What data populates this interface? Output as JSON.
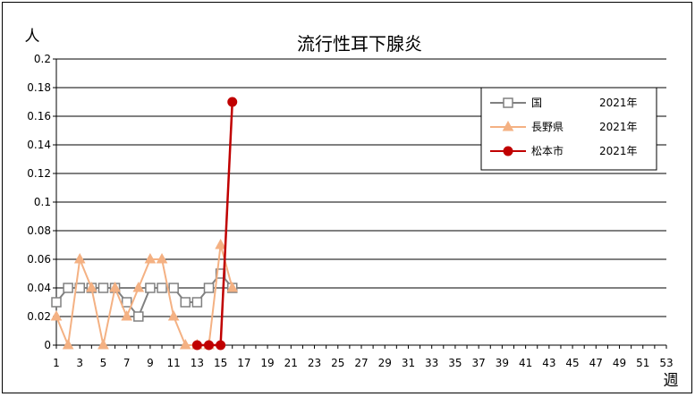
{
  "chart_data": {
    "type": "line",
    "title": "流行性耳下腺炎",
    "ylabel": "人",
    "xlabel": "週",
    "ylim": [
      0,
      0.2
    ],
    "y_ticks": [
      "0",
      "0.02",
      "0.04",
      "0.06",
      "0.08",
      "0.1",
      "0.12",
      "0.14",
      "0.16",
      "0.18",
      "0.2"
    ],
    "xlim": [
      1,
      53
    ],
    "x_ticks": [
      "1",
      "3",
      "5",
      "7",
      "9",
      "11",
      "13",
      "15",
      "17",
      "19",
      "21",
      "23",
      "25",
      "27",
      "29",
      "31",
      "33",
      "35",
      "37",
      "39",
      "41",
      "43",
      "45",
      "47",
      "49",
      "51",
      "53"
    ],
    "grid": "horizontal",
    "legend_position": "top-right",
    "series": [
      {
        "name": "国",
        "name_year": "2021年",
        "color": "#808080",
        "marker": "square-open",
        "x": [
          1,
          2,
          3,
          4,
          5,
          6,
          7,
          8,
          9,
          10,
          11,
          12,
          13,
          14,
          15,
          16
        ],
        "values": [
          0.03,
          0.04,
          0.04,
          0.04,
          0.04,
          0.04,
          0.03,
          0.02,
          0.04,
          0.04,
          0.04,
          0.03,
          0.03,
          0.04,
          0.05,
          0.04
        ]
      },
      {
        "name": "長野県",
        "name_year": "2021年",
        "color": "#F4B183",
        "marker": "triangle",
        "x": [
          1,
          2,
          3,
          4,
          5,
          6,
          7,
          8,
          9,
          10,
          11,
          12,
          13,
          14,
          15,
          16
        ],
        "values": [
          0.02,
          0,
          0.06,
          0.04,
          0,
          0.04,
          0.02,
          0.04,
          0.06,
          0.06,
          0.02,
          0,
          0,
          0,
          0.07,
          0.04
        ]
      },
      {
        "name": "松本市",
        "name_year": "2021年",
        "color": "#C00000",
        "marker": "circle",
        "x": [
          13,
          14,
          15,
          16
        ],
        "values": [
          0,
          0,
          0,
          0.17
        ]
      }
    ]
  }
}
